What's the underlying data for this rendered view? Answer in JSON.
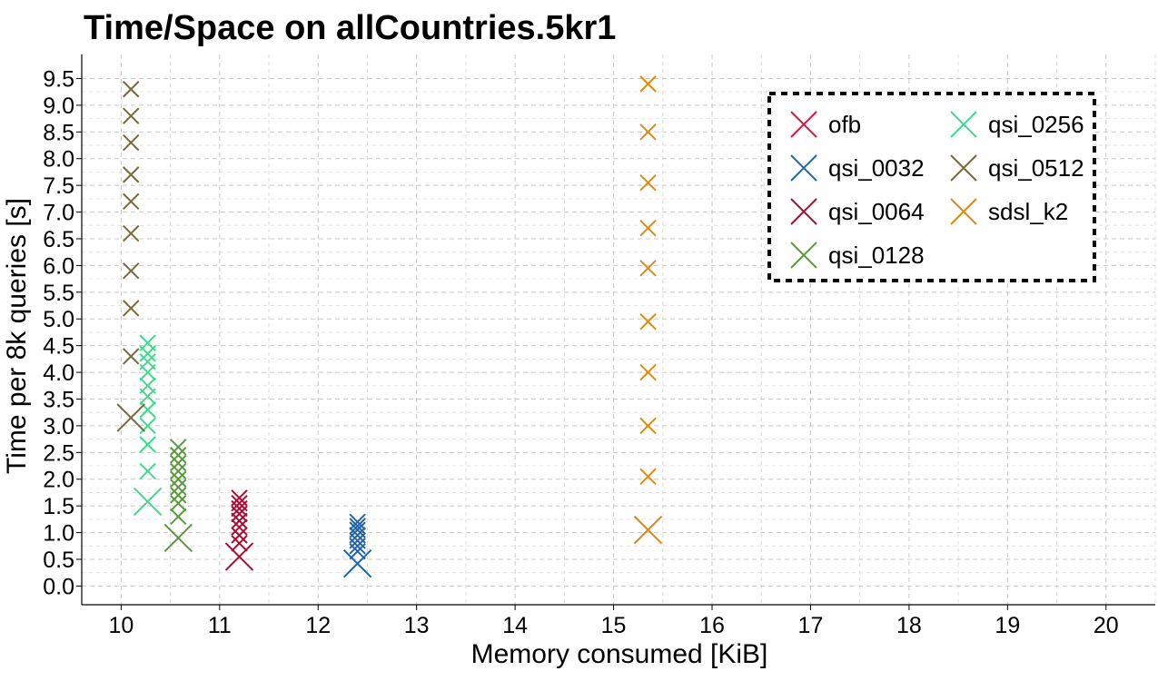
{
  "chart_data": {
    "type": "scatter",
    "title": "Time/Space on allCountries.5kr1",
    "xlabel": "Memory consumed [KiB]",
    "ylabel": "Time per 8k queries [s]",
    "xlim": [
      9.6,
      20.5
    ],
    "ylim": [
      -0.35,
      9.95
    ],
    "x_ticks": [
      10,
      11,
      12,
      13,
      14,
      15,
      16,
      17,
      18,
      19,
      20
    ],
    "y_ticks": [
      0.0,
      0.5,
      1.0,
      1.5,
      2.0,
      2.5,
      3.0,
      3.5,
      4.0,
      4.5,
      5.0,
      5.5,
      6.0,
      6.5,
      7.0,
      7.5,
      8.0,
      8.5,
      9.0,
      9.5
    ],
    "y_tick_labels": [
      "0.0",
      "0.5",
      "1.0",
      "1.5",
      "2.0",
      "2.5",
      "3.0",
      "3.5",
      "4.0",
      "4.5",
      "5.0",
      "5.5",
      "6.0",
      "6.5",
      "7.0",
      "7.5",
      "8.0",
      "8.5",
      "9.0",
      "9.5"
    ],
    "grid": true,
    "legend_position": "top-right",
    "marker": "x",
    "series": [
      {
        "name": "ofb",
        "color": "#dc143c",
        "points": []
      },
      {
        "name": "qsi_0032",
        "color": "#2166ac",
        "points": [
          [
            12.4,
            0.42
          ],
          [
            12.4,
            0.65
          ],
          [
            12.4,
            0.75
          ],
          [
            12.4,
            0.85
          ],
          [
            12.4,
            0.95
          ],
          [
            12.4,
            1.05
          ],
          [
            12.4,
            1.12
          ],
          [
            12.4,
            1.2
          ]
        ]
      },
      {
        "name": "qsi_0064",
        "color": "#a50f32",
        "points": [
          [
            11.2,
            0.55
          ],
          [
            11.2,
            0.8
          ],
          [
            11.2,
            0.95
          ],
          [
            11.2,
            1.1
          ],
          [
            11.2,
            1.22
          ],
          [
            11.2,
            1.35
          ],
          [
            11.2,
            1.45
          ],
          [
            11.2,
            1.55
          ],
          [
            11.2,
            1.65
          ]
        ]
      },
      {
        "name": "qsi_0128",
        "color": "#5a9a3a",
        "points": [
          [
            10.58,
            0.9
          ],
          [
            10.58,
            1.3
          ],
          [
            10.58,
            1.55
          ],
          [
            10.58,
            1.7
          ],
          [
            10.58,
            1.85
          ],
          [
            10.58,
            2.0
          ],
          [
            10.58,
            2.15
          ],
          [
            10.58,
            2.3
          ],
          [
            10.58,
            2.45
          ],
          [
            10.58,
            2.6
          ]
        ]
      },
      {
        "name": "qsi_0256",
        "color": "#3fdb8c",
        "points": [
          [
            10.27,
            1.58
          ],
          [
            10.27,
            2.15
          ],
          [
            10.27,
            2.65
          ],
          [
            10.27,
            3.0
          ],
          [
            10.27,
            3.3
          ],
          [
            10.27,
            3.55
          ],
          [
            10.27,
            3.75
          ],
          [
            10.27,
            4.0
          ],
          [
            10.27,
            4.2
          ],
          [
            10.27,
            4.35
          ],
          [
            10.27,
            4.55
          ]
        ]
      },
      {
        "name": "qsi_0512",
        "color": "#7a6a3a",
        "points": [
          [
            10.1,
            3.15
          ],
          [
            10.1,
            4.3
          ],
          [
            10.1,
            5.2
          ],
          [
            10.1,
            5.9
          ],
          [
            10.1,
            6.6
          ],
          [
            10.1,
            7.2
          ],
          [
            10.1,
            7.7
          ],
          [
            10.1,
            8.3
          ],
          [
            10.1,
            8.8
          ],
          [
            10.1,
            9.3
          ]
        ]
      },
      {
        "name": "sdsl_k2",
        "color": "#e08a10",
        "points": [
          [
            15.35,
            1.05
          ],
          [
            15.35,
            2.05
          ],
          [
            15.35,
            3.0
          ],
          [
            15.35,
            4.0
          ],
          [
            15.35,
            4.95
          ],
          [
            15.35,
            5.95
          ],
          [
            15.35,
            6.7
          ],
          [
            15.35,
            7.55
          ],
          [
            15.35,
            8.5
          ],
          [
            15.35,
            9.4
          ]
        ]
      }
    ]
  }
}
